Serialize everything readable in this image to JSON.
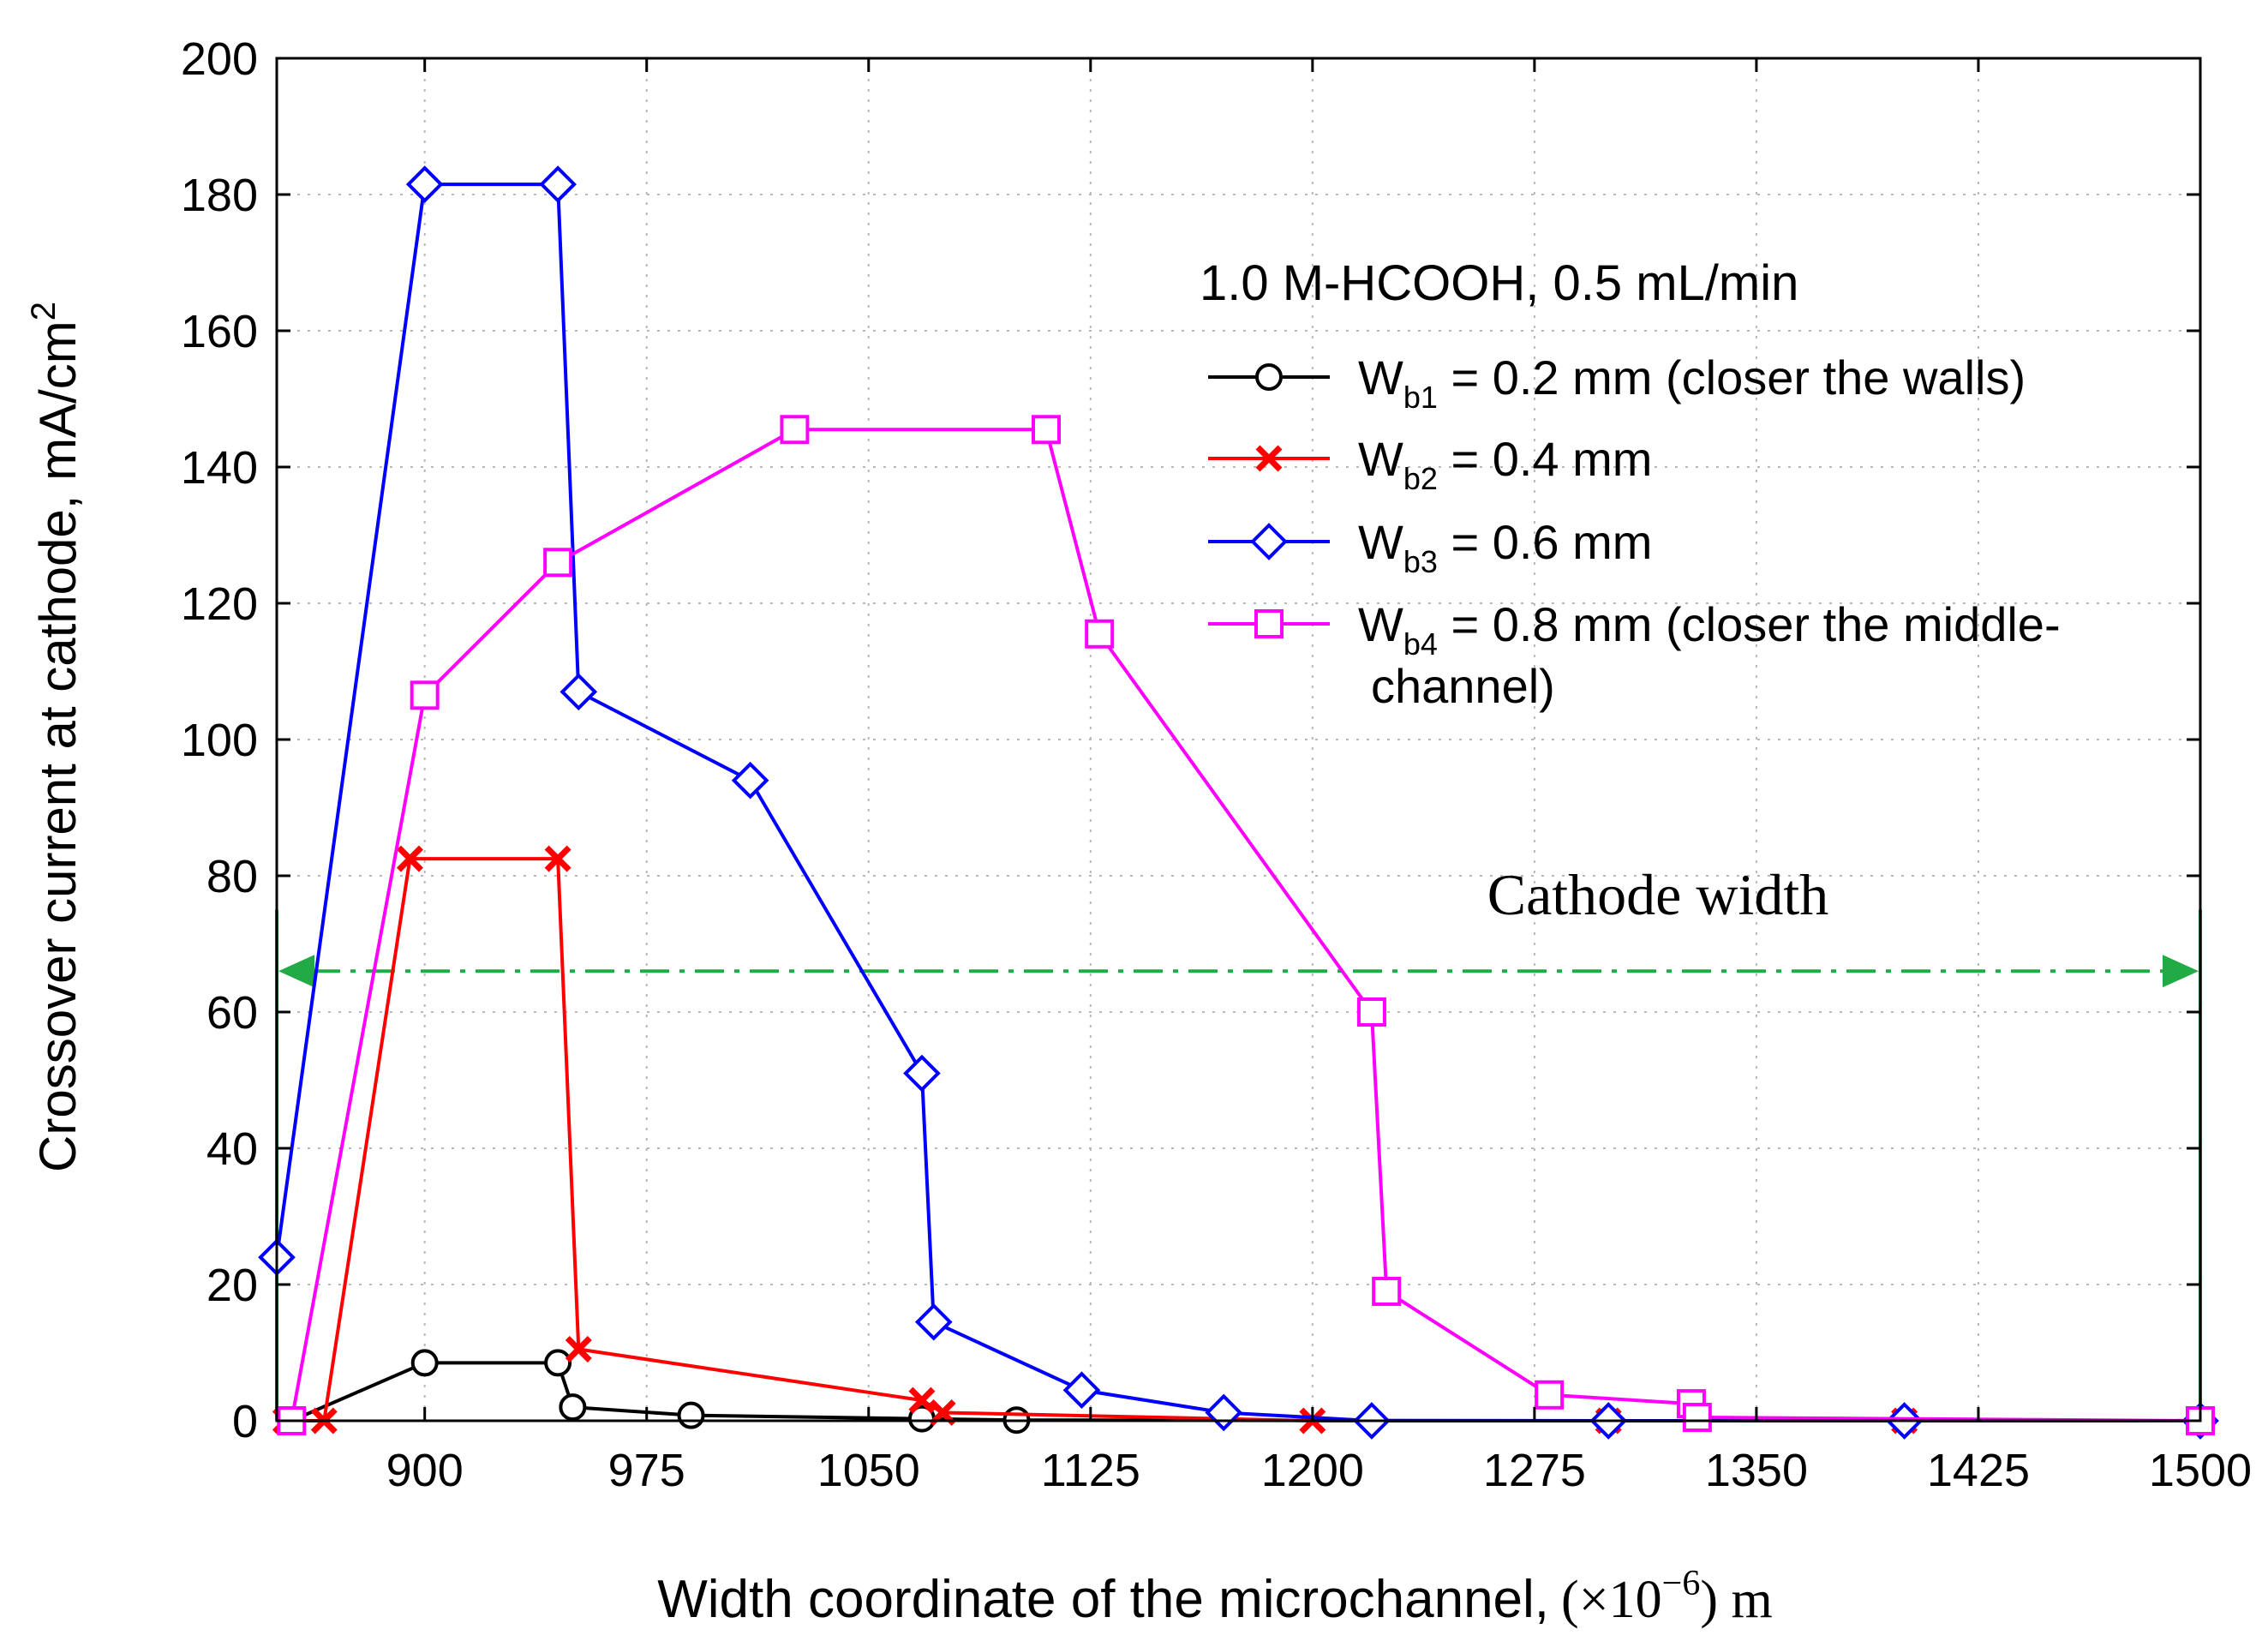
{
  "chart_data": {
    "type": "line",
    "title": "",
    "xlabel": "Width coordinate of the microchannel,",
    "xlabel_unit_prefix": "(×10",
    "xlabel_unit_exp": "−6",
    "xlabel_unit_suffix": ") m",
    "ylabel": "Crossover current at cathode, mA/cm",
    "ylabel_exp": "2",
    "xlim": [
      850,
      1500
    ],
    "ylim": [
      0,
      200
    ],
    "x_ticks": [
      900,
      975,
      1050,
      1125,
      1200,
      1275,
      1350,
      1425,
      1500
    ],
    "y_ticks": [
      0,
      20,
      40,
      60,
      80,
      100,
      120,
      140,
      160,
      180,
      200
    ],
    "grid": true,
    "legend_title": "1.0 M-HCOOH, 0.5 mL/min",
    "legend_position": "top-right",
    "series": [
      {
        "name": "W",
        "sub": "b1",
        "desc": " = 0.2 mm (closer the walls)",
        "desc2": "",
        "color": "#000000",
        "marker": "circle",
        "x": [
          855,
          900,
          945,
          950,
          990,
          1068,
          1100,
          1300,
          1500
        ],
        "y": [
          0,
          8.5,
          8.5,
          2,
          0.8,
          0.3,
          0.1,
          0,
          0
        ]
      },
      {
        "name": "W",
        "sub": "b2",
        "desc": " = 0.4 mm",
        "desc2": "",
        "color": "#ff0000",
        "marker": "x",
        "x": [
          853,
          866,
          895,
          945,
          952,
          1068,
          1075,
          1200,
          1300,
          1400,
          1500
        ],
        "y": [
          0,
          0,
          82.5,
          82.5,
          10.5,
          3,
          1.2,
          0,
          0,
          0,
          0
        ]
      },
      {
        "name": "W",
        "sub": "b3",
        "desc": " = 0.6 mm",
        "desc2": "",
        "color": "#0000ff",
        "marker": "diamond",
        "x": [
          850,
          900,
          945,
          952,
          1010,
          1068,
          1072,
          1122,
          1170,
          1220,
          1300,
          1400,
          1500
        ],
        "y": [
          24,
          181.5,
          181.5,
          107,
          94,
          51,
          14.5,
          4.5,
          1.2,
          0,
          0,
          0,
          0
        ]
      },
      {
        "name": "W",
        "sub": "b4",
        "desc": " = 0.8 mm (closer the middle-",
        "desc2": "channel)",
        "color": "#ff00ff",
        "marker": "square",
        "x": [
          855,
          900,
          945,
          1025,
          1110,
          1128,
          1220,
          1225,
          1280,
          1328,
          1330,
          1500
        ],
        "y": [
          0,
          106.5,
          126,
          145.5,
          145.5,
          115.5,
          60,
          19,
          3.8,
          2.5,
          0.5,
          0
        ]
      }
    ],
    "annotation": {
      "text": "Cathode width",
      "y": 66,
      "x_start": 850,
      "x_end": 1500,
      "color": "#22aa44"
    }
  }
}
